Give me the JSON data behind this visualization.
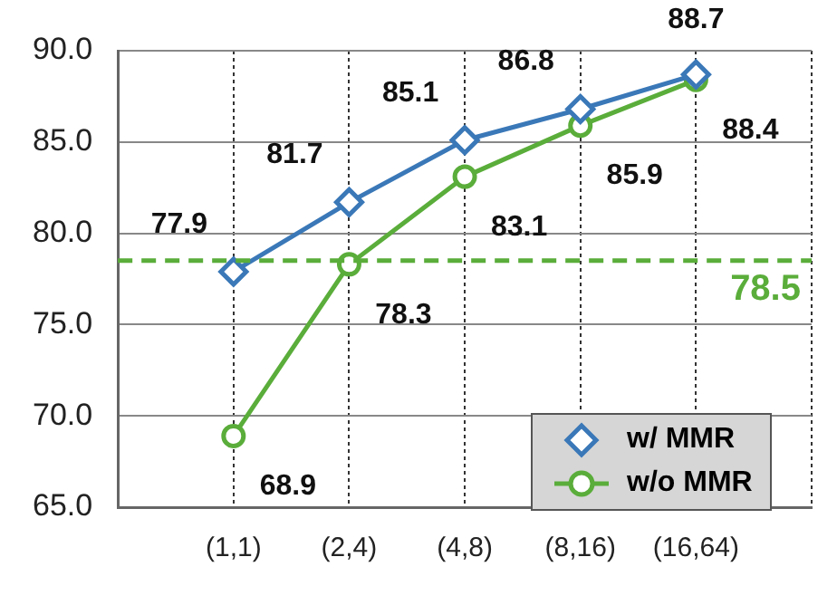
{
  "chart_data": {
    "type": "line",
    "categories": [
      "(1,1)",
      "(2,4)",
      "(4,8)",
      "(8,16)",
      "(16,64)"
    ],
    "series": [
      {
        "name": "w/ MMR",
        "color": "#3a78b8",
        "values": [
          77.9,
          81.7,
          85.1,
          86.8,
          88.7
        ],
        "marker": "diamond"
      },
      {
        "name": "w/o MMR",
        "color": "#5aad3a",
        "values": [
          68.9,
          78.3,
          83.1,
          85.9,
          88.4
        ],
        "marker": "circle"
      }
    ],
    "ylim": [
      65,
      90
    ],
    "yticks": [
      {
        "value": 65,
        "label": "65.0"
      },
      {
        "value": 70,
        "label": "70.0"
      },
      {
        "value": 75,
        "label": "75.0"
      },
      {
        "value": 80,
        "label": "80.0"
      },
      {
        "value": 85,
        "label": "85.0"
      },
      {
        "value": 90,
        "label": "90.0"
      }
    ],
    "ref_lines": [
      {
        "axis": "y",
        "value": 78.5,
        "label": "78.5",
        "color": "#5aad3a",
        "line_style": "dashed"
      }
    ],
    "data_labels": true,
    "grid": true,
    "legend": "bottom right"
  }
}
